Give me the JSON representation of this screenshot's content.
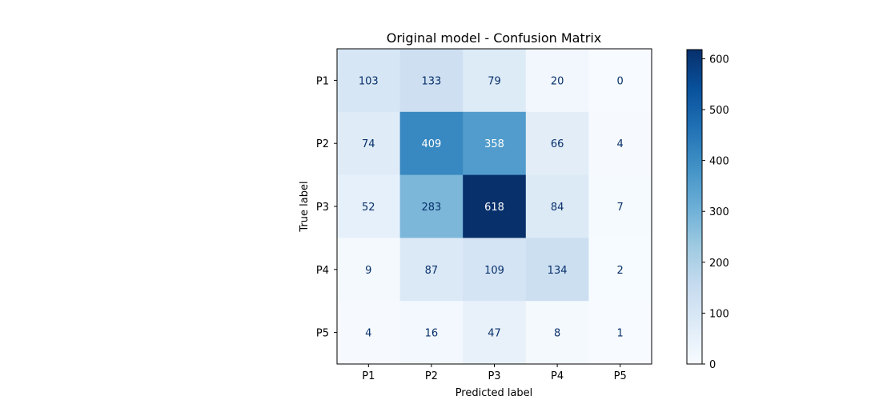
{
  "chart_data": {
    "type": "heatmap",
    "title": "Original model - Confusion Matrix",
    "xlabel": "Predicted label",
    "ylabel": "True label",
    "x_categories": [
      "P1",
      "P2",
      "P3",
      "P4",
      "P5"
    ],
    "y_categories": [
      "P1",
      "P2",
      "P3",
      "P4",
      "P5"
    ],
    "values": [
      [
        103,
        133,
        79,
        20,
        0
      ],
      [
        74,
        409,
        358,
        66,
        4
      ],
      [
        52,
        283,
        618,
        84,
        7
      ],
      [
        9,
        87,
        109,
        134,
        2
      ],
      [
        4,
        16,
        47,
        8,
        1
      ]
    ],
    "colormap": "Blues",
    "colorbar": {
      "min": 0,
      "max": 618,
      "ticks": [
        0,
        100,
        200,
        300,
        400,
        500,
        600
      ]
    },
    "grid": false,
    "legend": "colorbar-right"
  }
}
